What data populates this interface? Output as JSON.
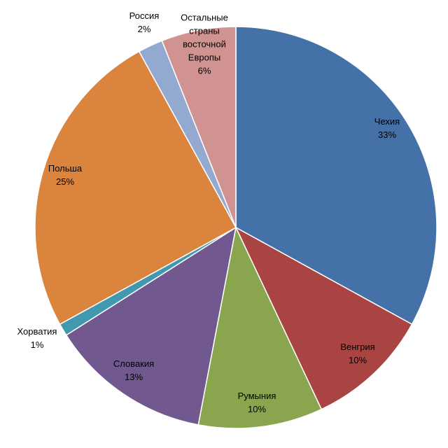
{
  "chart_data": {
    "type": "pie",
    "title": "",
    "legend": "none",
    "start_angle_deg": 0,
    "direction": "clockwise",
    "slices": [
      {
        "name": "Чехия",
        "value": 33,
        "label_lines": [
          "Чехия"
        ],
        "pct": "33%",
        "color": "#4472A8"
      },
      {
        "name": "Венгрия",
        "value": 10,
        "label_lines": [
          "Венгрия"
        ],
        "pct": "10%",
        "color": "#AA4442"
      },
      {
        "name": "Румыния",
        "value": 10,
        "label_lines": [
          "Румыния"
        ],
        "pct": "10%",
        "color": "#89A54E"
      },
      {
        "name": "Словакия",
        "value": 13,
        "label_lines": [
          "Словакия"
        ],
        "pct": "13%",
        "color": "#71588F"
      },
      {
        "name": "Хорватия",
        "value": 1,
        "label_lines": [
          "Хорватия"
        ],
        "pct": "1%",
        "color": "#4198AF"
      },
      {
        "name": "Польша",
        "value": 25,
        "label_lines": [
          "Польша"
        ],
        "pct": "25%",
        "color": "#DB843D"
      },
      {
        "name": "Россия",
        "value": 2,
        "label_lines": [
          "Россия"
        ],
        "pct": "2%",
        "color": "#93A9CF"
      },
      {
        "name": "Остальные страны восточной Европы",
        "value": 6,
        "label_lines": [
          "Остальные",
          "страны",
          "восточной",
          "Европы"
        ],
        "pct": "6%",
        "color": "#D19392"
      }
    ]
  }
}
